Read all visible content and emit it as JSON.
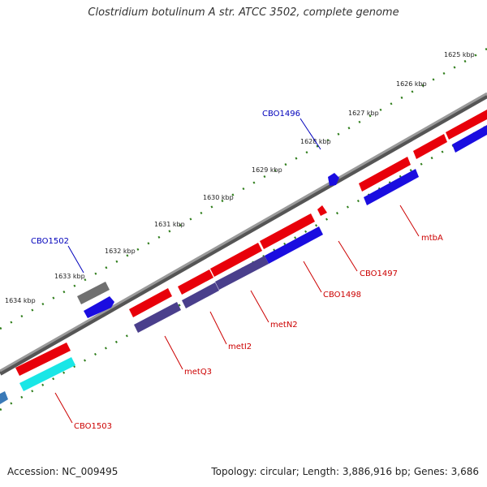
{
  "title": "Clostridium botulinum A str. ATCC 3502, complete genome",
  "footer": {
    "accession": "Accession: NC_009495",
    "stats": "Topology: circular; Length: 3,886,916 bp; Genes: 3,686"
  },
  "colors": {
    "backbone": "#888888",
    "tick": "#2e7d1a",
    "forward_gene": "#e8000a",
    "reverse_gene": "#1a0de0",
    "operon_gene": "#4a3f8c",
    "cyan_gene": "#19e6e6",
    "gray_gene": "#707070",
    "label_red": "#cc0000",
    "label_blue": "#0000bb"
  },
  "ticks": [
    "1625 kbp",
    "1626 kbp",
    "1627 kbp",
    "1628 kbp",
    "1629 kbp",
    "1630 kbp",
    "1631 kbp",
    "1632 kbp",
    "1633 kbp",
    "1634 kbp"
  ],
  "gene_labels": [
    {
      "id": "cbo1496",
      "text": "CBO1496",
      "color": "blue"
    },
    {
      "id": "cbo1502",
      "text": "CBO1502",
      "color": "blue"
    },
    {
      "id": "mtba",
      "text": "mtbA",
      "color": "red"
    },
    {
      "id": "cbo1497",
      "text": "CBO1497",
      "color": "red"
    },
    {
      "id": "cbo1498",
      "text": "CBO1498",
      "color": "red"
    },
    {
      "id": "metn2",
      "text": "metN2",
      "color": "red"
    },
    {
      "id": "meti2",
      "text": "metI2",
      "color": "red"
    },
    {
      "id": "metq3",
      "text": "metQ3",
      "color": "red"
    },
    {
      "id": "cbo1503",
      "text": "CBO1503",
      "color": "red"
    }
  ]
}
